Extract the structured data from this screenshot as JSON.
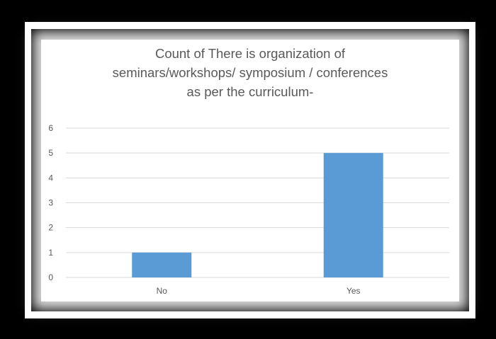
{
  "chart_data": {
    "type": "bar",
    "title_lines": [
      "Count of There is organization of",
      "seminars/workshops/  symposium  / conferences",
      "as per the curriculum-"
    ],
    "categories": [
      "No",
      "Yes"
    ],
    "values": [
      1,
      5
    ],
    "ylim": [
      0,
      6
    ],
    "yticks": [
      0,
      1,
      2,
      3,
      4,
      5,
      6
    ],
    "grid": true,
    "legend": "none",
    "bar_color": "#5b9bd5",
    "grid_color": "#d9d9d9"
  }
}
